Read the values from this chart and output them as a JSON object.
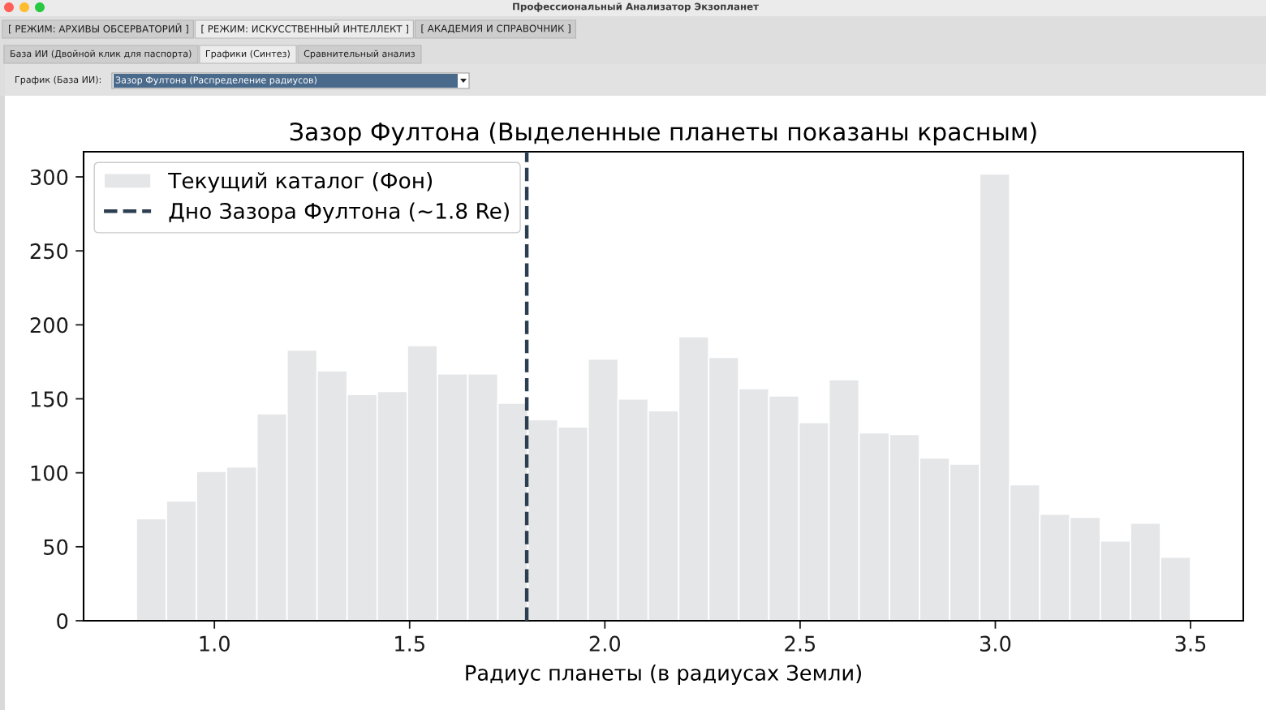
{
  "chart_data": {
    "type": "histogram",
    "title": "Зазор Фултона (Выделенные планеты показаны красным)",
    "xlabel": "Радиус планеты (в радиусах Земли)",
    "bins": [
      0.8,
      0.877,
      0.954,
      1.031,
      1.109,
      1.186,
      1.263,
      1.34,
      1.417,
      1.494,
      1.571,
      1.649,
      1.726,
      1.803,
      1.88,
      1.957,
      2.034,
      2.111,
      2.189,
      2.266,
      2.343,
      2.42,
      2.497,
      2.574,
      2.651,
      2.729,
      2.806,
      2.883,
      2.96,
      3.037,
      3.114,
      3.191,
      3.269,
      3.346,
      3.423,
      3.5
    ],
    "series": [
      {
        "name": "Текущий каталог (Фон)",
        "color": "#e4e6e8",
        "values": [
          69,
          81,
          101,
          104,
          140,
          183,
          169,
          153,
          155,
          186,
          167,
          167,
          147,
          136,
          131,
          177,
          150,
          142,
          192,
          178,
          157,
          152,
          134,
          163,
          127,
          126,
          110,
          106,
          302,
          92,
          72,
          70,
          54,
          66,
          43
        ]
      }
    ],
    "ref_lines": [
      {
        "axis": "x",
        "value": 1.8,
        "label": "Дно Зазора Фултона (~1.8 Re)",
        "color": "#2c3e50",
        "line_style": "dashed"
      }
    ],
    "xlim": [
      0.665,
      3.635
    ],
    "xticks": [
      {
        "value": 1.0,
        "label": "1.0"
      },
      1.5,
      {
        "value": 2.0,
        "label": "2.0"
      },
      2.5,
      {
        "value": 3.0,
        "label": "3.0"
      },
      3.5
    ],
    "ylim": [
      0,
      317
    ],
    "yticks": [
      0,
      50,
      100,
      150,
      200,
      250,
      300
    ],
    "legend": "top left",
    "annotations": [
      "Профессиональный Анализатор Экзопланет",
      "[ РЕЖИМ: АРХИВЫ ОБСЕРВАТОРИЙ ]",
      "[ РЕЖИМ: ИСКУССТВЕННЫЙ ИНТЕЛЛЕКТ ]",
      "[ АКАДЕМИЯ И СПРАВОЧНИК ]",
      "База ИИ (Двойной клик для паспорта)",
      "Графики (Синтез)",
      "Сравнительный анализ",
      "График (База ИИ):",
      "Зазор Фултона (Распределение радиусов)"
    ]
  }
}
